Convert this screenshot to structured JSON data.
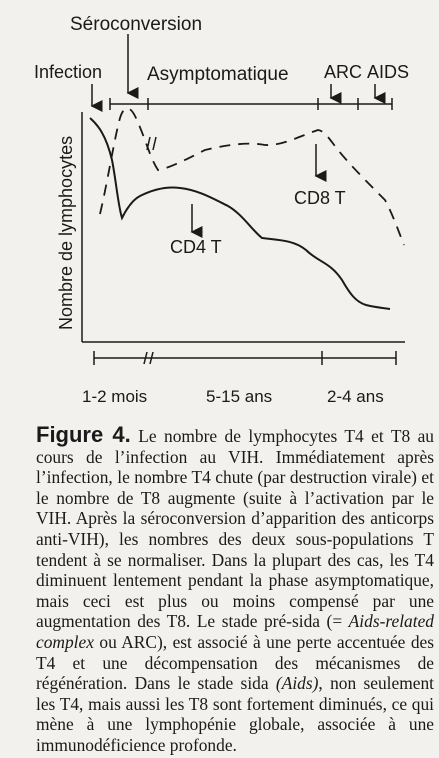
{
  "diagram": {
    "stage_labels": {
      "seroconversion": "Séroconversion",
      "infection": "Infection",
      "asymptomatic": "Asymptomatique",
      "arc": "ARC",
      "aids": "AIDS"
    },
    "y_axis_label": "Nombre de lymphocytes",
    "curve_labels": {
      "cd8": "CD8 T",
      "cd4": "CD4 T"
    },
    "duration_labels": {
      "early": "1-2 mois",
      "middle": "5-15 ans",
      "late": "2-4 ans"
    },
    "series": [
      {
        "name": "CD4 T",
        "style": "solid"
      },
      {
        "name": "CD8 T",
        "style": "dashed"
      }
    ]
  },
  "caption": {
    "label": "Figure 4.",
    "text_1": " Le nombre de lymphocytes T4 et T8 au cours de l’infection au VIH. Immédiatement après l’infection, le nombre T4 chute (par destruction virale) et le nombre de T8 augmente (suite à l’activation par le VIH. Après la séroconversion d’apparition des anticorps anti-VIH), les nombres des deux sous-populations T tendent à se normaliser. Dans la plupart des cas, les T4 diminuent lentement pendant la phase asymptomatique, mais ceci est plus ou moins compensé par une augmentation des T8. Le stade pré-sida (= ",
    "italic_1": "Aids-related complex",
    "text_2": " ou ARC), est associé à une perte accentuée des T4 et une décompensation des mécanismes de régénération. Dans le stade sida ",
    "italic_2": "(Aids)",
    "text_3": ", non seulement les T4, mais aussi les T8 sont fortement diminués, ce qui mène à une lymphopénie globale, associée à une immunodéficience profonde."
  }
}
